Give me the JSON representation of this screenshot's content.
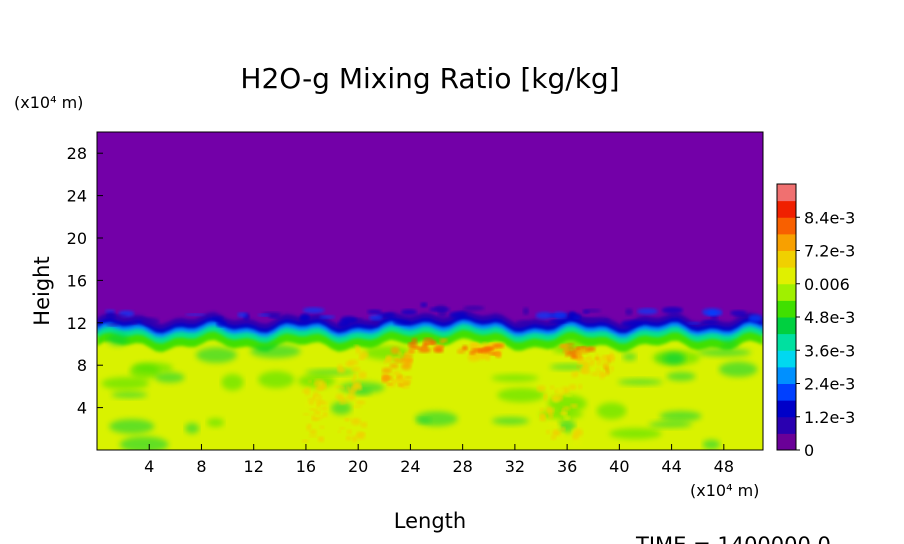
{
  "chart_data": {
    "type": "heatmap",
    "title": "H2O-g Mixing Ratio [kg/kg]",
    "xlabel": "Length",
    "ylabel": "Height",
    "x_unit_label": "(x10⁴ m)",
    "y_unit_label": "(x10⁴ m)",
    "xlim": [
      0,
      51
    ],
    "ylim": [
      0,
      30
    ],
    "x_ticks": [
      4,
      8,
      12,
      16,
      20,
      24,
      28,
      32,
      36,
      40,
      44,
      48
    ],
    "y_ticks": [
      4,
      8,
      12,
      16,
      20,
      24,
      28
    ],
    "colorbar": {
      "min": 0,
      "max": 0.0096,
      "tick_values": [
        0,
        0.0012,
        0.0024,
        0.0036,
        0.0048,
        0.006,
        0.0072,
        0.0084
      ],
      "tick_labels": [
        "0",
        "1.2e-3",
        "2.4e-3",
        "3.6e-3",
        "4.8e-3",
        "0.006",
        "7.2e-3",
        "8.4e-3"
      ],
      "colors": [
        "#6a0098",
        "#2a00b0",
        "#0000c8",
        "#0040ff",
        "#0090ff",
        "#00d8f0",
        "#00e0a0",
        "#00d040",
        "#40e000",
        "#a0f000",
        "#e0f000",
        "#f0d000",
        "#f8a000",
        "#f86000",
        "#f02000",
        "#f07070"
      ]
    },
    "field_regions": {
      "upper_level_value": 0,
      "lower_level_value": 0.0058,
      "interface_height_range": [
        11,
        12.5
      ],
      "moist_band_value_range": [
        0.0012,
        0.0048
      ],
      "maximum_value_range": [
        0.0072,
        0.0084
      ],
      "maximum_location_x_range": [
        24,
        38
      ],
      "maximum_location_height_range": [
        8.5,
        10.5
      ]
    },
    "time_label": "TIME = 1400000.0"
  },
  "colors": {
    "upper_fill": "#7300a8",
    "lower_fill": "#d9f200"
  }
}
